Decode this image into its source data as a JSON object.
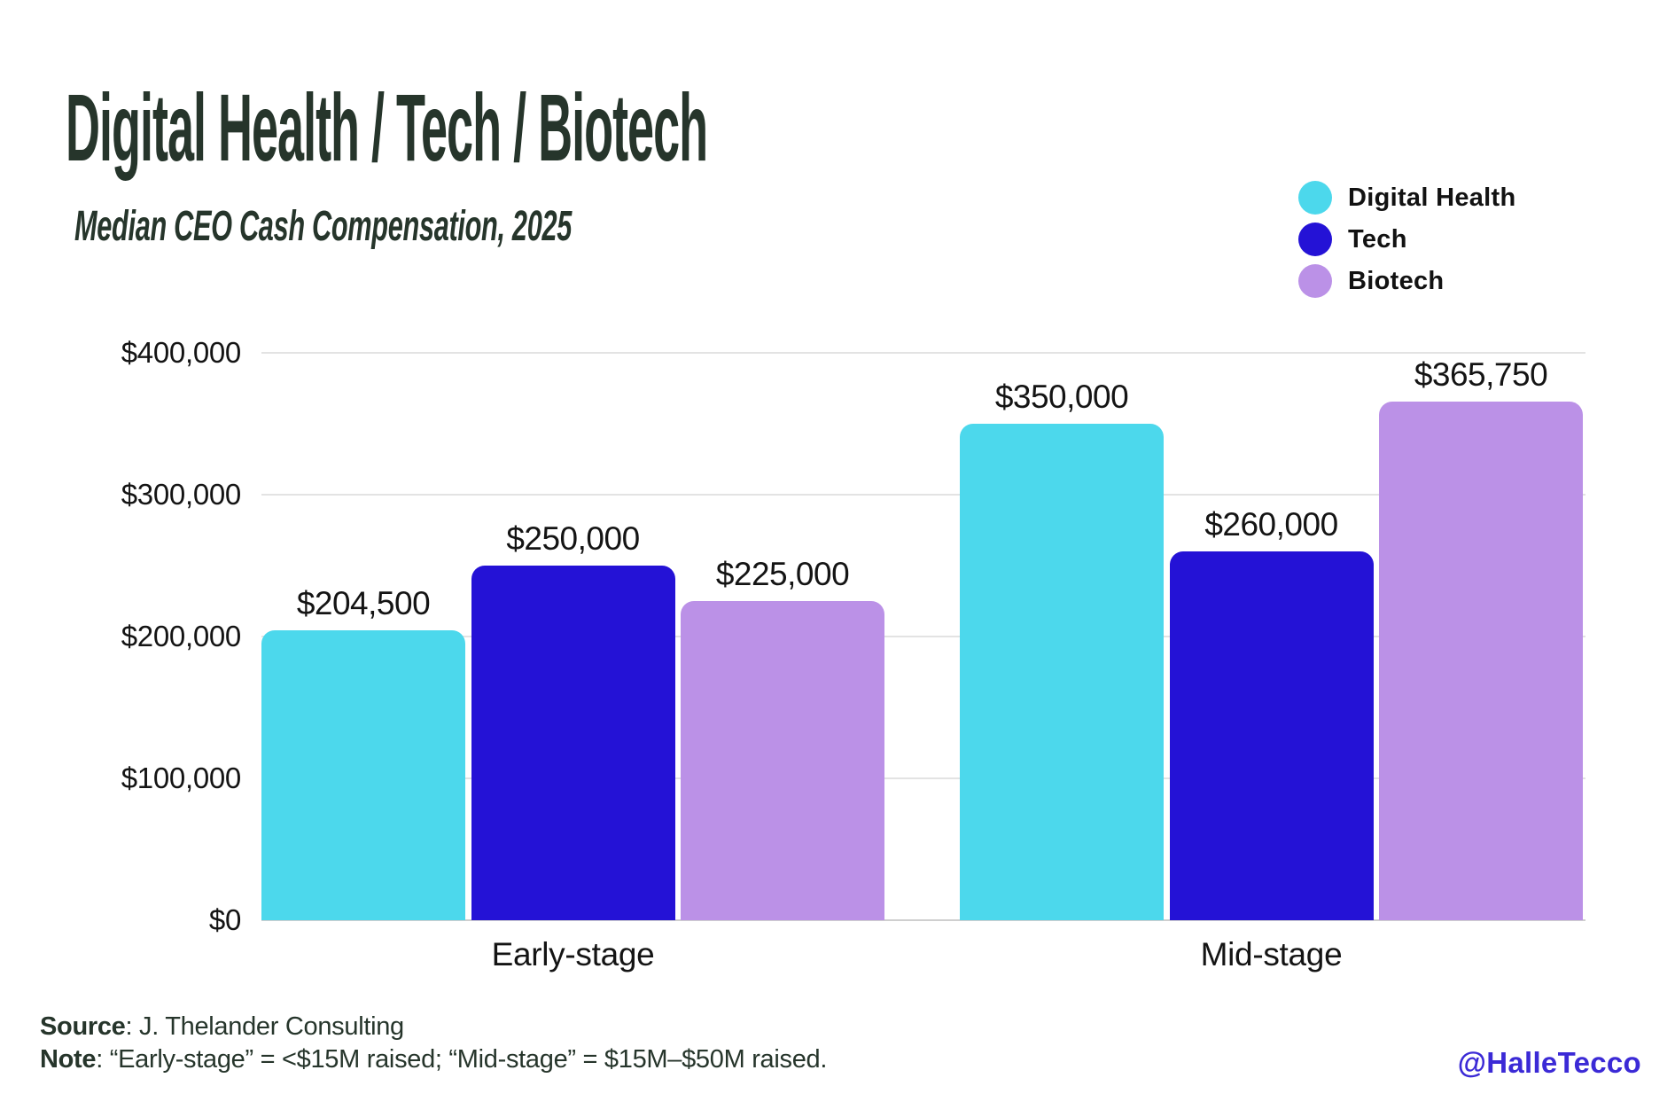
{
  "header": {
    "title": "Digital Health / Tech / Biotech",
    "subtitle": "Median CEO Cash Compensation, 2025",
    "title_color": "#26352b"
  },
  "legend": {
    "position": "top-right",
    "items": [
      {
        "label": "Digital Health",
        "color": "#4cd8ec"
      },
      {
        "label": "Tech",
        "color": "#2412d6"
      },
      {
        "label": "Biotech",
        "color": "#bb91e7"
      }
    ]
  },
  "chart_data": {
    "type": "bar",
    "title": "Digital Health / Tech / Biotech",
    "subtitle": "Median CEO Cash Compensation, 2025",
    "categories": [
      "Early-stage",
      "Mid-stage"
    ],
    "series": [
      {
        "name": "Digital Health",
        "color": "#4cd8ec",
        "values": [
          204500,
          350000
        ],
        "labels": [
          "$204,500",
          "$350,000"
        ]
      },
      {
        "name": "Tech",
        "color": "#2412d6",
        "values": [
          250000,
          260000
        ],
        "labels": [
          "$250,000",
          "$260,000"
        ]
      },
      {
        "name": "Biotech",
        "color": "#bb91e7",
        "values": [
          225000,
          365750
        ],
        "labels": [
          "$225,000",
          "$365,750"
        ]
      }
    ],
    "xlabel": "",
    "ylabel": "",
    "ylim": [
      0,
      400000
    ],
    "grid": true,
    "legend_position": "top-right",
    "y_ticks": [
      {
        "value": 400000,
        "label": "$400,000"
      },
      {
        "value": 300000,
        "label": "$300,000"
      },
      {
        "value": 200000,
        "label": "$200,000"
      },
      {
        "value": 100000,
        "label": "$100,000"
      },
      {
        "value": 0,
        "label": "$0"
      }
    ]
  },
  "footer": {
    "source_label": "Source",
    "source_text": ": J. Thelander Consulting",
    "note_label": "Note",
    "note_text": ": “Early-stage” = <$15M raised; “Mid-stage” = $15M–$50M raised.",
    "credit": "@HalleTecco",
    "credit_color": "#3b2ad6"
  }
}
